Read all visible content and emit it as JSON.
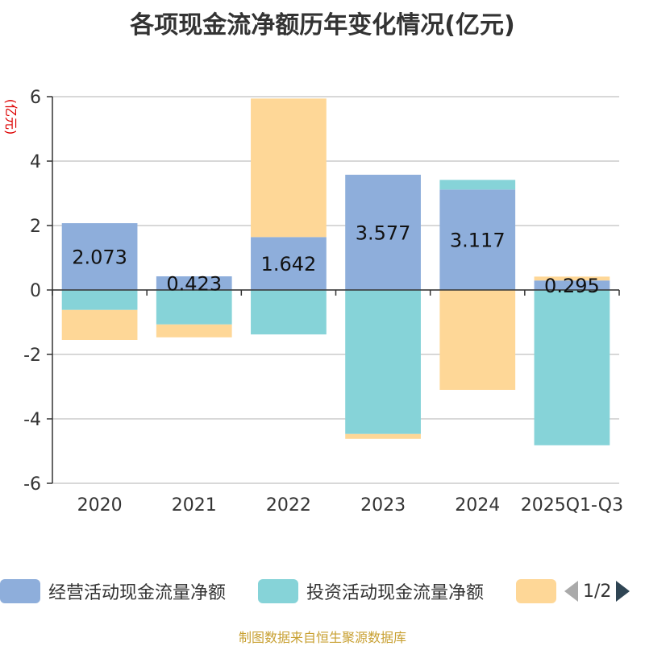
{
  "title": "各项现金流净额历年变化情况(亿元)",
  "source": "制图数据来自恒生聚源数据库",
  "legend": {
    "items": [
      {
        "label": "经营活动现金流量净额",
        "color": "#8eaedb"
      },
      {
        "label": "投资活动现金流量净额",
        "color": "#86d3d8"
      },
      {
        "label": "",
        "color": "#fed797"
      }
    ],
    "pager": "1/2"
  },
  "chart_data": {
    "type": "bar",
    "stacked": true,
    "ylabel": "(亿元)",
    "ylim": [
      -6,
      6
    ],
    "yticks": [
      -6,
      -4,
      -2,
      0,
      2,
      4,
      6
    ],
    "grid": true,
    "legend_position": "bottom",
    "categories": [
      "2020",
      "2021",
      "2022",
      "2023",
      "2024",
      "2025Q1-Q3"
    ],
    "series": [
      {
        "name": "经营活动现金流量净额",
        "color": "#8eaedb",
        "values": [
          2.073,
          0.423,
          1.642,
          3.577,
          3.117,
          0.295
        ],
        "labels": [
          "2.073",
          "0.423",
          "1.642",
          "3.577",
          "3.117",
          "0.295"
        ]
      },
      {
        "name": "投资活动现金流量净额",
        "color": "#86d3d8",
        "values": [
          -0.62,
          -1.07,
          -1.38,
          -4.47,
          0.3,
          -4.82
        ]
      },
      {
        "color": "#fed797",
        "values": [
          -0.93,
          -0.4,
          4.3,
          -0.15,
          -3.1,
          0.12
        ]
      }
    ]
  }
}
